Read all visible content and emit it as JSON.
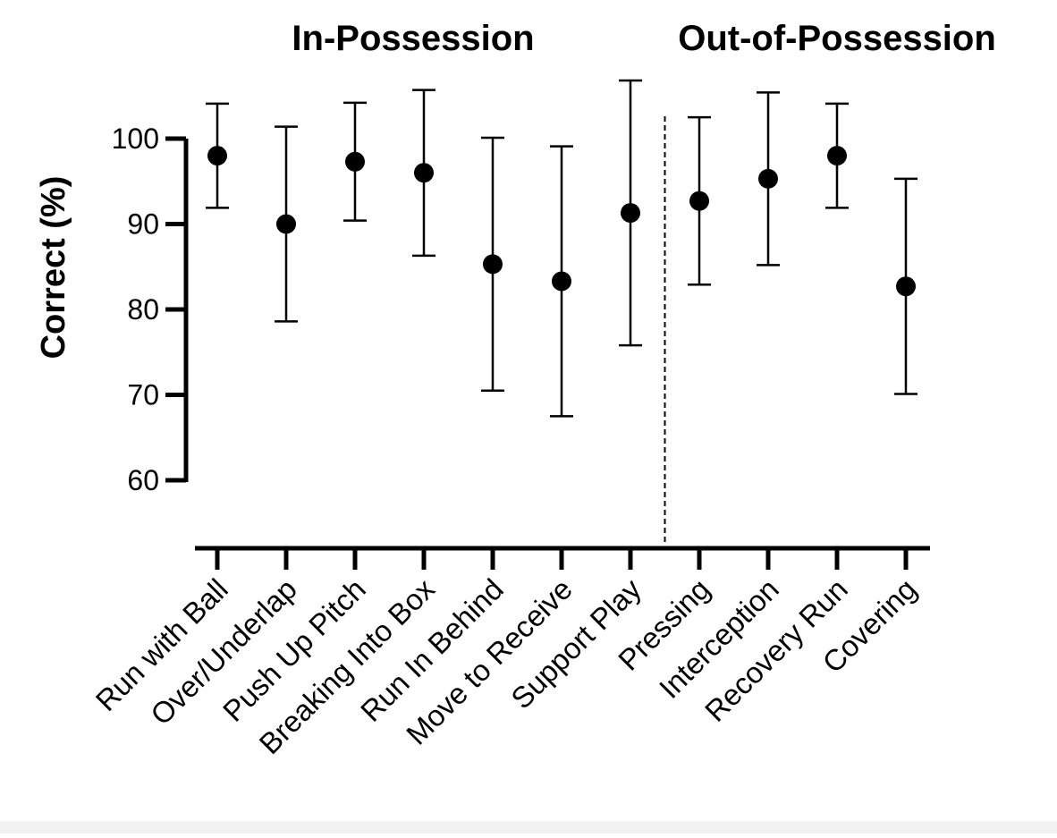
{
  "chart_data": {
    "type": "scatter",
    "subtype": "dot-with-error-bars",
    "ylabel": "Correct (%)",
    "xlabel": "",
    "ylim": [
      52,
      107
    ],
    "yticks": [
      60,
      70,
      80,
      90,
      100
    ],
    "groups": [
      {
        "label": "In-Possession",
        "categories": [
          "Run with Ball",
          "Over/Underlap",
          "Push Up Pitch",
          "Breaking Into Box",
          "Run In Behind",
          "Move to Receive",
          "Support Play"
        ]
      },
      {
        "label": "Out-of-Possession",
        "categories": [
          "Pressing",
          "Interception",
          "Recovery Run",
          "Covering"
        ]
      }
    ],
    "categories": [
      "Run with Ball",
      "Over/Underlap",
      "Push Up Pitch",
      "Breaking Into Box",
      "Run In Behind",
      "Move to Receive",
      "Support Play",
      "Pressing",
      "Interception",
      "Recovery Run",
      "Covering"
    ],
    "values": [
      98.0,
      90.0,
      97.3,
      96.0,
      85.3,
      83.3,
      91.3,
      92.7,
      95.3,
      98.0,
      82.7
    ],
    "error_low": [
      91.9,
      78.6,
      90.4,
      86.3,
      70.5,
      67.5,
      75.8,
      82.9,
      85.2,
      91.9,
      70.1
    ],
    "error_high": [
      104.1,
      101.4,
      104.2,
      105.7,
      100.1,
      99.1,
      106.8,
      102.5,
      105.4,
      104.1,
      95.3
    ],
    "divider_after_category": "Support Play",
    "grid": false,
    "legend": "none"
  }
}
